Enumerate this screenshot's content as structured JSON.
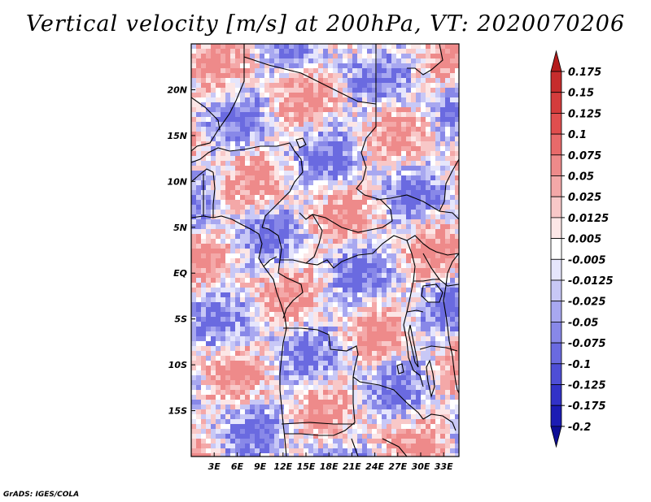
{
  "title": "Vertical velocity [m/s] at 200hPa, VT: 2020070206",
  "credit": "GrADS: IGES/COLA",
  "map": {
    "field": "vertical velocity",
    "region": "Central and Southern Africa",
    "lon_range": [
      0,
      35
    ],
    "lat_range": [
      -20,
      25
    ],
    "lon_ticks": [
      "3E",
      "6E",
      "9E",
      "12E",
      "15E",
      "18E",
      "21E",
      "24E",
      "27E",
      "30E",
      "33E"
    ],
    "lat_ticks": [
      "20N",
      "15N",
      "10N",
      "5N",
      "EQ",
      "5S",
      "10S",
      "15S"
    ]
  },
  "colorbar": {
    "levels": [
      "0.175",
      "0.15",
      "0.125",
      "0.1",
      "0.075",
      "0.05",
      "0.025",
      "0.0125",
      "0.005",
      "-0.005",
      "-0.0125",
      "-0.025",
      "-0.05",
      "-0.075",
      "-0.1",
      "-0.125",
      "-0.175",
      "-0.2"
    ],
    "colors": [
      "#b41c1c",
      "#c62c2c",
      "#d43c3c",
      "#e04e4e",
      "#e86a6a",
      "#ee8a8a",
      "#f4a8a8",
      "#f8c8c8",
      "#fce6e6",
      "#ffffff",
      "#e6e6fc",
      "#c8c8f6",
      "#a8a8f0",
      "#8888e8",
      "#6a6ae0",
      "#4e4ed6",
      "#3232c8",
      "#1c1cb4",
      "#0e0e96"
    ]
  }
}
